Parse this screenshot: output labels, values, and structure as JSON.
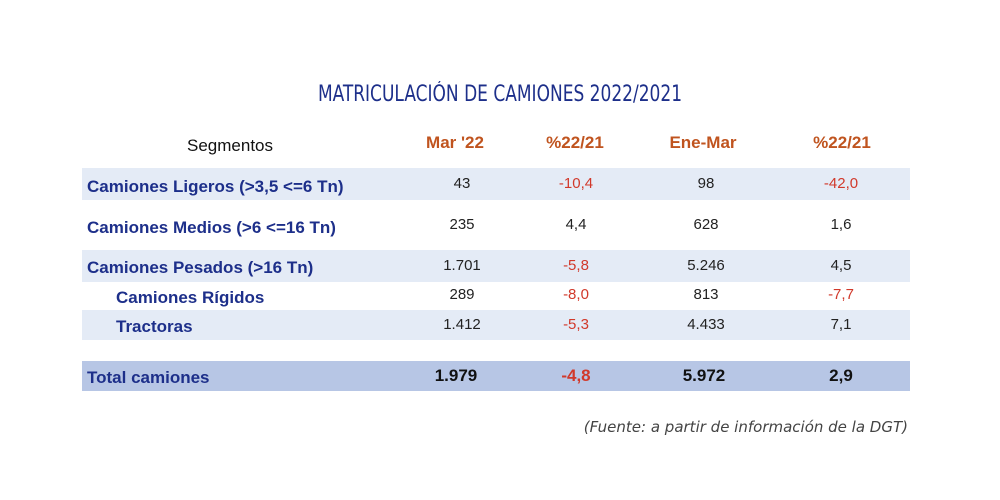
{
  "title": "MATRICULACIÓN DE CAMIONES 2022/2021",
  "header": {
    "segment": "Segmentos",
    "col1": "Mar '22",
    "col2": "%22/21",
    "col3": "Ene-Mar",
    "col4": "%22/21"
  },
  "rows": [
    {
      "label": "Camiones Ligeros (>3,5 <=6 Tn)",
      "mar": "43",
      "pct1": "-10,4",
      "enemar": "98",
      "pct2": "-42,0"
    },
    {
      "label": "Camiones Medios (>6 <=16 Tn)",
      "mar": "235",
      "pct1": "4,4",
      "enemar": "628",
      "pct2": "1,6"
    },
    {
      "label": "Camiones Pesados (>16 Tn)",
      "mar": "1.701",
      "pct1": "-5,8",
      "enemar": "5.246",
      "pct2": "4,5"
    },
    {
      "label": "Camiones Rígidos",
      "mar": "289",
      "pct1": "-8,0",
      "enemar": "813",
      "pct2": "-7,7"
    },
    {
      "label": "Tractoras",
      "mar": "1.412",
      "pct1": "-5,3",
      "enemar": "4.433",
      "pct2": "7,1"
    }
  ],
  "total": {
    "label": "Total camiones",
    "mar": "1.979",
    "pct1": "-4,8",
    "enemar": "5.972",
    "pct2": "2,9"
  },
  "source": "(Fuente: a partir de información de la DGT)",
  "colors": {
    "title": "#1d2f8a",
    "header": "#c0541f",
    "negative": "#d1392b",
    "band": "#e4ebf6",
    "total_band": "#b7c6e5"
  }
}
